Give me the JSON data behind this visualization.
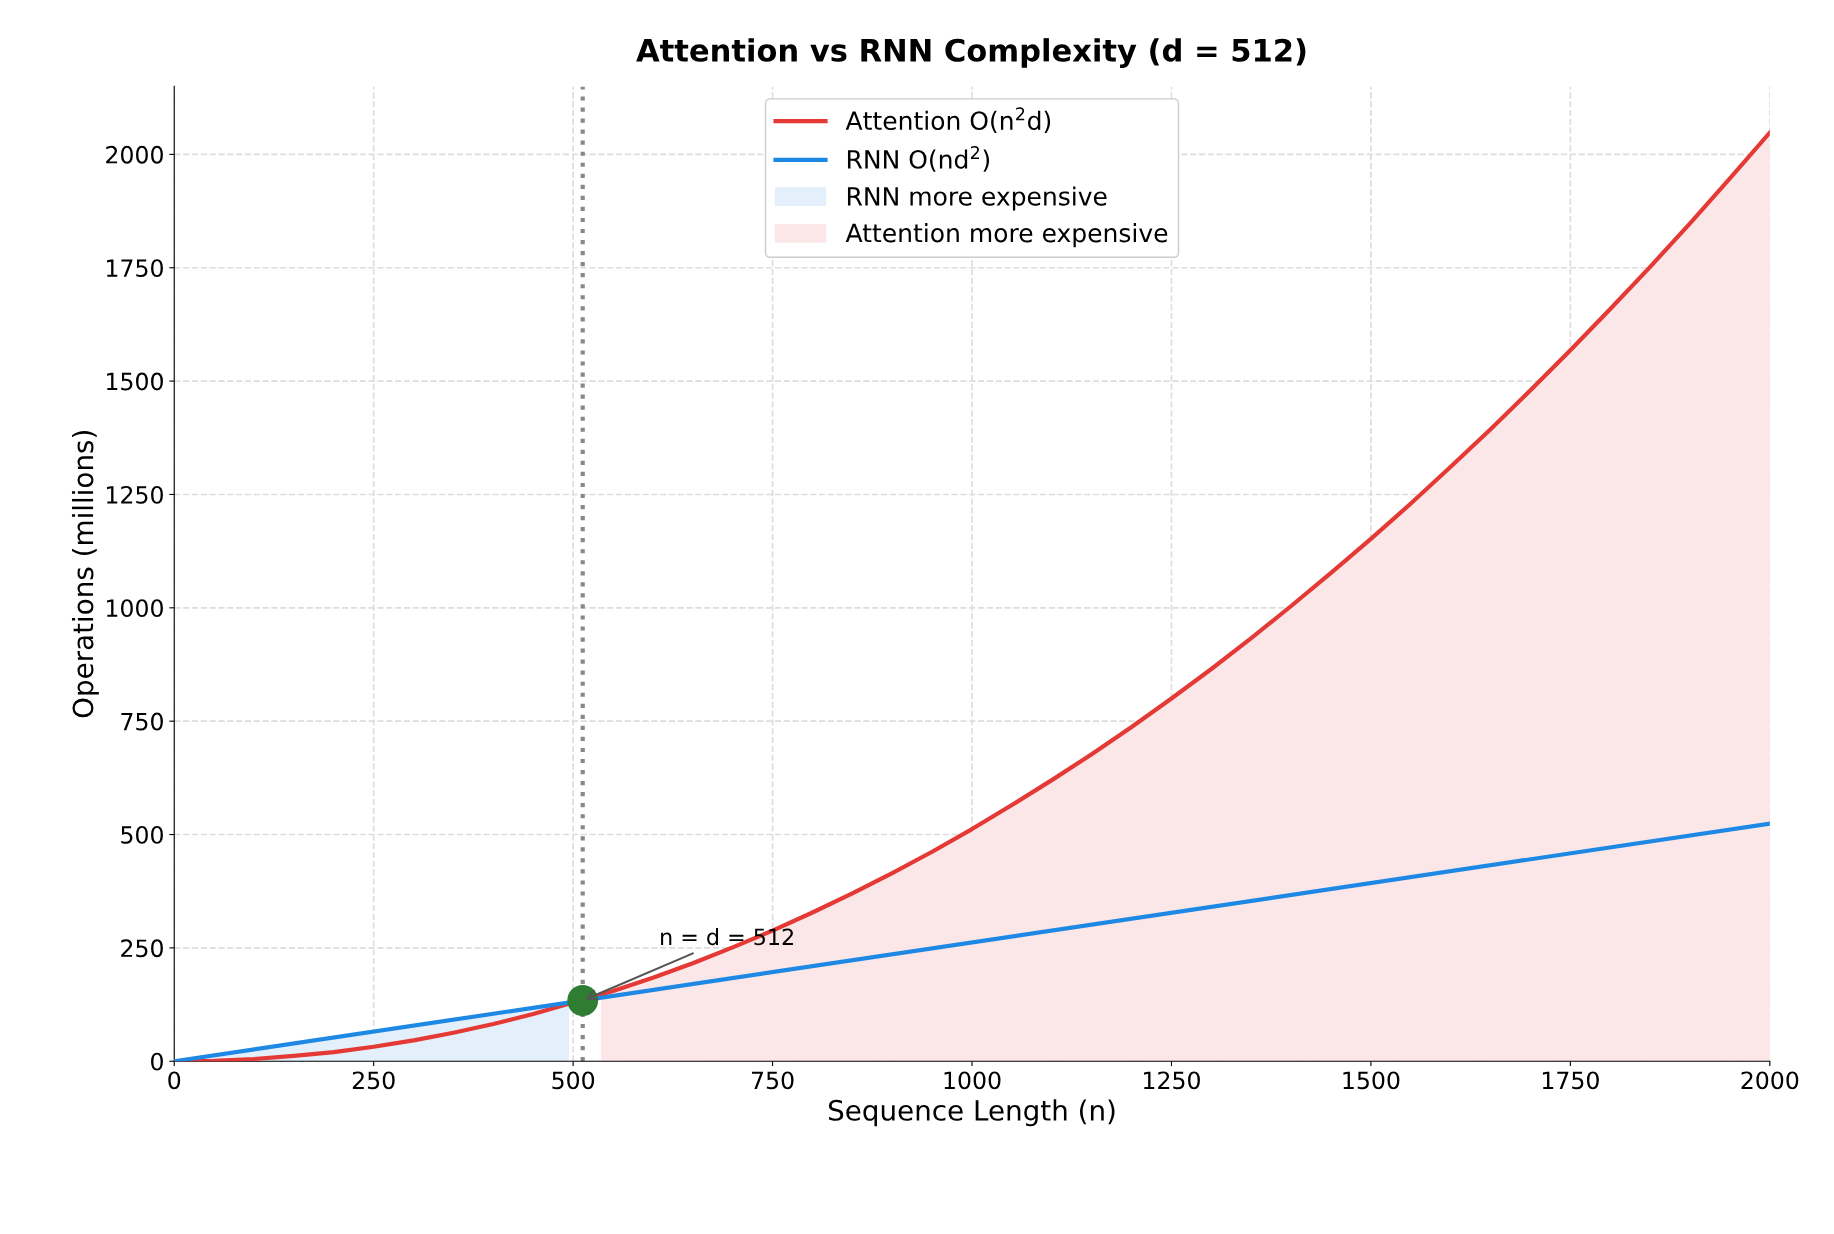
{
  "chart_data": {
    "type": "line",
    "title": "Attention vs RNN Complexity (d = 512)",
    "xlabel": "Sequence Length (n)",
    "ylabel": "Operations (millions)",
    "xlim": [
      0,
      2000
    ],
    "ylim": [
      0,
      2150
    ],
    "xticks": [
      0,
      250,
      500,
      750,
      1000,
      1250,
      1500,
      1750,
      2000
    ],
    "yticks": [
      0,
      250,
      500,
      750,
      1000,
      1250,
      1500,
      1750,
      2000
    ],
    "grid": true,
    "legend": "top",
    "line_style": "solid",
    "series": [
      {
        "name": "Attention O(n$^{2}$d)",
        "color": "#e53935",
        "x": [
          0,
          50,
          100,
          150,
          200,
          250,
          300,
          350,
          400,
          450,
          550,
          600,
          650,
          700,
          750,
          800,
          850,
          900,
          950,
          1000,
          1050,
          1100,
          1150,
          1200,
          1250,
          1300,
          1350,
          1400,
          1450,
          1500,
          1550,
          1600,
          1650,
          1700,
          1750,
          1800,
          1850,
          1900,
          1950,
          2000
        ],
        "values": [
          0,
          1,
          5,
          12,
          20,
          32,
          46,
          63,
          82,
          104,
          155,
          184,
          216,
          251,
          288,
          328,
          370,
          415,
          462,
          512,
          565,
          620,
          677,
          737,
          800,
          865,
          933,
          1004,
          1077,
          1152,
          1230,
          1311,
          1394,
          1480,
          1568,
          1659,
          1752,
          1848,
          1947,
          2048
        ]
      },
      {
        "name": "RNN O(nd$^{2}$)",
        "type": "line",
        "color": "#1e88e5",
        "x": [
          0,
          2000
        ],
        "values": [
          0,
          524
        ]
      },
      {
        "name": "RNN more expensive",
        "type": "area",
        "color": "#e3effb",
        "x": [
          0,
          495
        ],
        "values": [
          0,
          130
        ]
      },
      {
        "name": "Attention more expensive",
        "type": "area",
        "color": "#fbe7e8",
        "x": [
          535,
          550,
          600,
          650,
          700,
          750,
          800,
          850,
          900,
          950,
          1000,
          1050,
          1100,
          1150,
          1200,
          1250,
          1300,
          1350,
          1400,
          1450,
          1500,
          1550,
          1600,
          1650,
          1700,
          1750,
          1800,
          1850,
          1900,
          1950,
          2000
        ],
        "values": [
          147,
          155,
          184,
          216,
          251,
          288,
          328,
          370,
          415,
          462,
          512,
          565,
          620,
          677,
          737,
          800,
          865,
          933,
          1004,
          1077,
          1152,
          1230,
          1311,
          1394,
          1480,
          1568,
          1659,
          1752,
          1848,
          1947,
          2048
        ]
      },
      {
        "type": "scatter",
        "color": "#2e7d32",
        "x": [
          512
        ],
        "values": [
          134
        ],
        "marker": "circle"
      }
    ],
    "ref_lines": [
      {
        "axis": "x",
        "value": 512,
        "color": "#888888",
        "line_style": "dotted"
      }
    ],
    "annotations": [
      {
        "text": "n = d = 512",
        "x": 512,
        "y": 134
      }
    ]
  }
}
